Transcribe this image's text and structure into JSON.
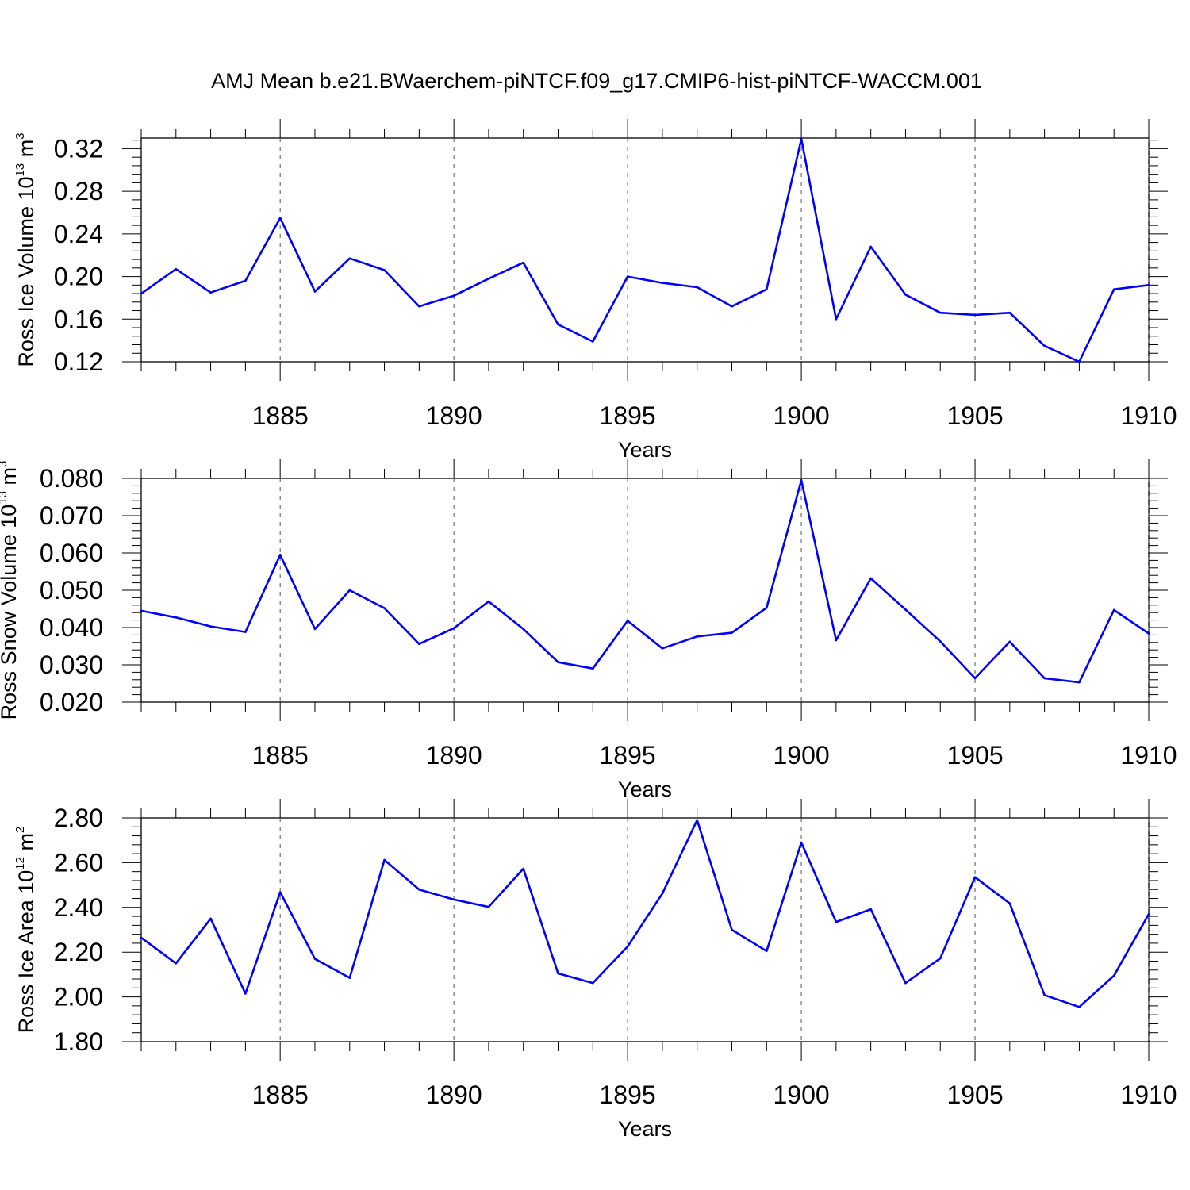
{
  "figure_title": "AMJ Mean b.e21.BWaerchem-piNTCF.f09_g17.CMIP6-hist-piNTCF-WACCM.001",
  "colors": {
    "series": "#0000ff",
    "frame": "#000000",
    "grid": "#555555"
  },
  "chart_data": [
    {
      "type": "line",
      "ylabel": "Ross Ice Volume 10",
      "ylabel_exponent": "13",
      "ylabel_unit": " m",
      "ylabel_unit_exponent": "3",
      "xlabel": "Years",
      "xlim": [
        1881,
        1910
      ],
      "ylim": [
        0.12,
        0.33
      ],
      "xticks": [
        1885,
        1890,
        1895,
        1900,
        1905,
        1910
      ],
      "xtick_labels": [
        "1885",
        "1890",
        "1895",
        "1900",
        "1905",
        "1910"
      ],
      "yticks": [
        0.12,
        0.16,
        0.2,
        0.24,
        0.28,
        0.32
      ],
      "ytick_labels": [
        "0.12",
        "0.16",
        "0.20",
        "0.24",
        "0.28",
        "0.32"
      ],
      "x": [
        1881,
        1882,
        1883,
        1884,
        1885,
        1886,
        1887,
        1888,
        1889,
        1890,
        1891,
        1892,
        1893,
        1894,
        1895,
        1896,
        1897,
        1898,
        1899,
        1900,
        1901,
        1902,
        1903,
        1904,
        1905,
        1906,
        1907,
        1908,
        1909,
        1910
      ],
      "y": [
        0.184,
        0.207,
        0.185,
        0.196,
        0.255,
        0.186,
        0.217,
        0.206,
        0.172,
        0.182,
        0.198,
        0.213,
        0.155,
        0.139,
        0.2,
        0.194,
        0.19,
        0.172,
        0.188,
        0.329,
        0.16,
        0.228,
        0.183,
        0.166,
        0.164,
        0.166,
        0.135,
        0.12,
        0.188,
        0.192
      ]
    },
    {
      "type": "line",
      "ylabel": "Ross Snow Volume 10",
      "ylabel_exponent": "13",
      "ylabel_unit": " m",
      "ylabel_unit_exponent": "3",
      "xlabel": "Years",
      "xlim": [
        1881,
        1910
      ],
      "ylim": [
        0.02,
        0.08
      ],
      "xticks": [
        1885,
        1890,
        1895,
        1900,
        1905,
        1910
      ],
      "xtick_labels": [
        "1885",
        "1890",
        "1895",
        "1900",
        "1905",
        "1910"
      ],
      "yticks": [
        0.02,
        0.03,
        0.04,
        0.05,
        0.06,
        0.07,
        0.08
      ],
      "ytick_labels": [
        "0.020",
        "0.030",
        "0.040",
        "0.050",
        "0.060",
        "0.070",
        "0.080"
      ],
      "x": [
        1881,
        1882,
        1883,
        1884,
        1885,
        1886,
        1887,
        1888,
        1889,
        1890,
        1891,
        1892,
        1893,
        1894,
        1895,
        1896,
        1897,
        1898,
        1899,
        1900,
        1901,
        1902,
        1903,
        1904,
        1905,
        1906,
        1907,
        1908,
        1909,
        1910
      ],
      "y": [
        0.0445,
        0.0427,
        0.0403,
        0.0388,
        0.0595,
        0.0396,
        0.05,
        0.0452,
        0.0356,
        0.0398,
        0.047,
        0.0396,
        0.0307,
        0.029,
        0.0418,
        0.0344,
        0.0376,
        0.0386,
        0.0453,
        0.0795,
        0.0366,
        0.0532,
        0.0448,
        0.0363,
        0.0264,
        0.0362,
        0.0264,
        0.0253,
        0.0447,
        0.0384
      ]
    },
    {
      "type": "line",
      "ylabel": "Ross Ice Area 10",
      "ylabel_exponent": "12",
      "ylabel_unit": " m",
      "ylabel_unit_exponent": "2",
      "xlabel": "Years",
      "xlim": [
        1881,
        1910
      ],
      "ylim": [
        1.8,
        2.8
      ],
      "xticks": [
        1885,
        1890,
        1895,
        1900,
        1905,
        1910
      ],
      "xtick_labels": [
        "1885",
        "1890",
        "1895",
        "1900",
        "1905",
        "1910"
      ],
      "yticks": [
        1.8,
        2.0,
        2.2,
        2.4,
        2.6,
        2.8
      ],
      "ytick_labels": [
        "1.80",
        "2.00",
        "2.20",
        "2.40",
        "2.60",
        "2.80"
      ],
      "x": [
        1881,
        1882,
        1883,
        1884,
        1885,
        1886,
        1887,
        1888,
        1889,
        1890,
        1891,
        1892,
        1893,
        1894,
        1895,
        1896,
        1897,
        1898,
        1899,
        1900,
        1901,
        1902,
        1903,
        1904,
        1905,
        1906,
        1907,
        1908,
        1909,
        1910
      ],
      "y": [
        2.265,
        2.15,
        2.35,
        2.015,
        2.468,
        2.17,
        2.085,
        2.612,
        2.48,
        2.435,
        2.402,
        2.573,
        2.105,
        2.062,
        2.225,
        2.462,
        2.79,
        2.3,
        2.205,
        2.69,
        2.335,
        2.392,
        2.062,
        2.172,
        2.535,
        2.418,
        2.008,
        1.955,
        2.095,
        2.37
      ]
    }
  ]
}
